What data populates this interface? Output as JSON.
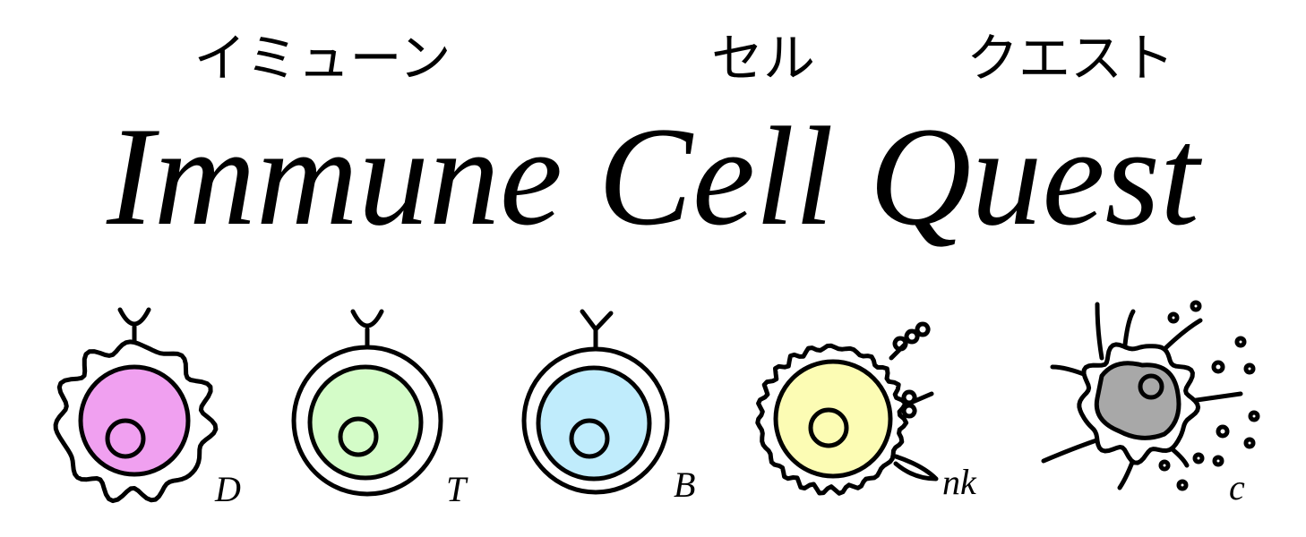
{
  "header": {
    "katakana": [
      "イミューン",
      "セル",
      "クエスト"
    ],
    "title": "Immune Cell Quest"
  },
  "cells": [
    {
      "label": "D"
    },
    {
      "label": "T"
    },
    {
      "label": "B"
    },
    {
      "label": "nk"
    },
    {
      "label": "c"
    }
  ]
}
